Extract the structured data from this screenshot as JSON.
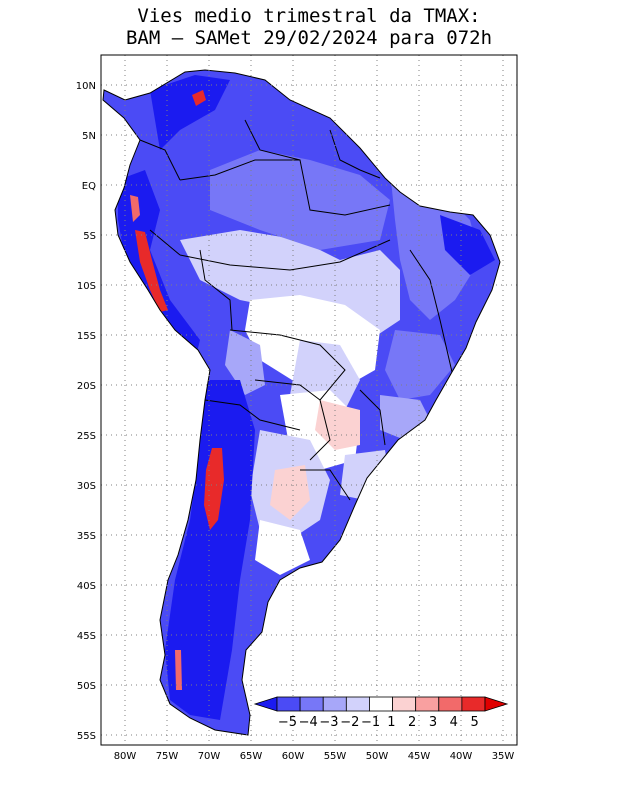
{
  "title": {
    "line1": "Vies medio trimestral da TMAX:",
    "line2": "BAM – SAMet 29/02/2024  para 072h"
  },
  "map": {
    "lat_labels": [
      "10N",
      "5N",
      "EQ",
      "5S",
      "10S",
      "15S",
      "20S",
      "25S",
      "30S",
      "35S",
      "40S",
      "45S",
      "50S",
      "55S"
    ],
    "lon_labels": [
      "80W",
      "75W",
      "70W",
      "65W",
      "60W",
      "55W",
      "50W",
      "45W",
      "40W",
      "35W"
    ],
    "grid": "dotted",
    "projection_extent": {
      "lon": [
        -83,
        -34
      ],
      "lat": [
        13,
        -56
      ]
    }
  },
  "colorbar": {
    "labels": [
      "−5",
      "−4",
      "−3",
      "−2",
      "−1",
      "1",
      "2",
      "3",
      "4",
      "5"
    ],
    "colors": [
      "#1b1bf0",
      "#4b4bf5",
      "#7777f7",
      "#a7a7f9",
      "#d2d2fb",
      "#ffffff",
      "#fbd2d2",
      "#f9a0a0",
      "#f26a6a",
      "#e82a2a",
      "#e00000"
    ]
  }
}
